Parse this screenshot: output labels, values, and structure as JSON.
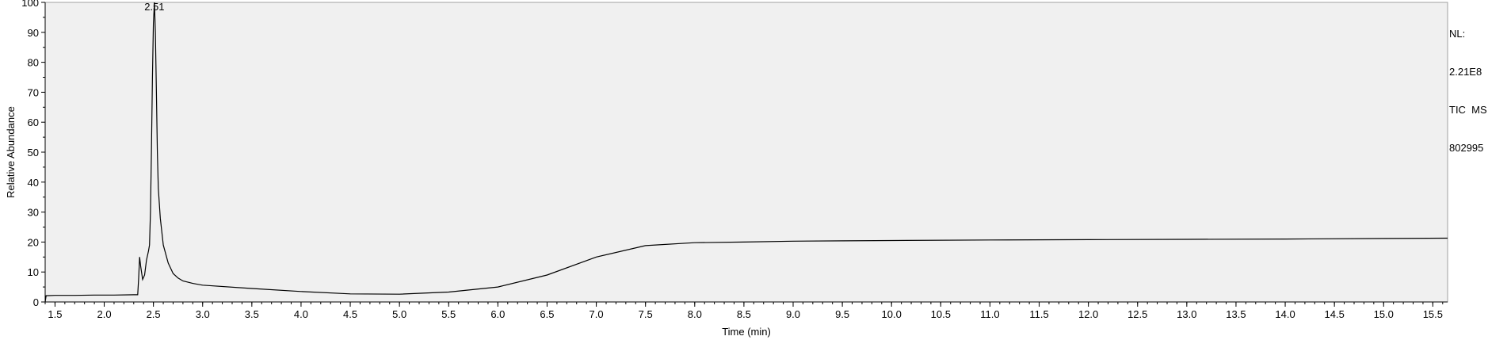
{
  "side_info": {
    "nl_label": "NL:",
    "nl_value": "2.21E8",
    "trace": "TIC  MS",
    "file_id": "802995"
  },
  "chart_data": {
    "type": "line",
    "title": "",
    "xlabel": "Time (min)",
    "ylabel": "Relative Abundance",
    "xlim": [
      1.4,
      15.65
    ],
    "ylim": [
      0,
      100
    ],
    "xticks": [
      "1.5",
      "2.0",
      "2.5",
      "3.0",
      "3.5",
      "4.0",
      "4.5",
      "5.0",
      "5.5",
      "6.0",
      "6.5",
      "7.0",
      "7.5",
      "8.0",
      "8.5",
      "9.0",
      "9.5",
      "10.0",
      "10.5",
      "11.0",
      "11.5",
      "12.0",
      "12.5",
      "13.0",
      "13.5",
      "14.0",
      "14.5",
      "15.0",
      "15.5"
    ],
    "yticks": [
      "0",
      "10",
      "20",
      "30",
      "40",
      "50",
      "60",
      "70",
      "80",
      "90",
      "100"
    ],
    "grid": false,
    "peak_annotations": [
      {
        "x": 2.51,
        "y": 100,
        "label": "2.51"
      }
    ],
    "series": [
      {
        "color": "#000000",
        "points": [
          [
            1.4,
            0.0
          ],
          [
            1.41,
            2.1
          ],
          [
            1.5,
            2.2
          ],
          [
            1.7,
            2.2
          ],
          [
            1.9,
            2.3
          ],
          [
            2.1,
            2.3
          ],
          [
            2.3,
            2.4
          ],
          [
            2.34,
            2.4
          ],
          [
            2.35,
            8.0
          ],
          [
            2.36,
            15.0
          ],
          [
            2.37,
            12.0
          ],
          [
            2.39,
            7.5
          ],
          [
            2.41,
            9.0
          ],
          [
            2.43,
            14.0
          ],
          [
            2.45,
            17.0
          ],
          [
            2.46,
            19.0
          ],
          [
            2.47,
            30.0
          ],
          [
            2.48,
            50.0
          ],
          [
            2.49,
            75.0
          ],
          [
            2.5,
            93.0
          ],
          [
            2.51,
            100.0
          ],
          [
            2.52,
            90.0
          ],
          [
            2.53,
            70.0
          ],
          [
            2.54,
            50.0
          ],
          [
            2.55,
            38.0
          ],
          [
            2.57,
            28.0
          ],
          [
            2.6,
            19.0
          ],
          [
            2.65,
            13.0
          ],
          [
            2.7,
            9.5
          ],
          [
            2.75,
            8.0
          ],
          [
            2.8,
            7.0
          ],
          [
            2.9,
            6.2
          ],
          [
            3.0,
            5.6
          ],
          [
            3.5,
            4.5
          ],
          [
            4.0,
            3.5
          ],
          [
            4.5,
            2.7
          ],
          [
            5.0,
            2.6
          ],
          [
            5.5,
            3.3
          ],
          [
            6.0,
            5.0
          ],
          [
            6.5,
            9.0
          ],
          [
            7.0,
            15.0
          ],
          [
            7.5,
            18.8
          ],
          [
            8.0,
            19.8
          ],
          [
            8.5,
            20.0
          ],
          [
            9.0,
            20.3
          ],
          [
            9.5,
            20.4
          ],
          [
            10.0,
            20.5
          ],
          [
            11.0,
            20.7
          ],
          [
            12.0,
            20.8
          ],
          [
            13.0,
            20.9
          ],
          [
            14.0,
            21.0
          ],
          [
            15.0,
            21.2
          ],
          [
            15.65,
            21.3
          ]
        ]
      }
    ]
  }
}
